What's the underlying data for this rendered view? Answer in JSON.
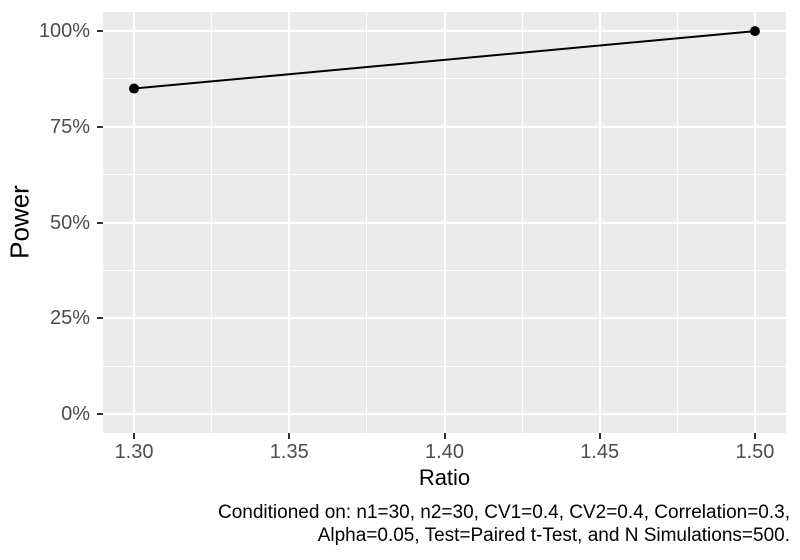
{
  "chart_data": {
    "type": "line",
    "title": "",
    "xlabel": "Ratio",
    "ylabel": "Power",
    "x": [
      1.3,
      1.5
    ],
    "series": [
      {
        "name": "Power",
        "values": [
          85,
          100
        ]
      }
    ],
    "y_unit": "%",
    "xlim": [
      1.29,
      1.51
    ],
    "ylim": [
      -5,
      105
    ],
    "x_ticks": [
      1.3,
      1.35,
      1.4,
      1.45,
      1.5
    ],
    "x_tick_labels": [
      "1.30",
      "1.35",
      "1.40",
      "1.45",
      "1.50"
    ],
    "y_ticks": [
      0,
      25,
      50,
      75,
      100
    ],
    "y_tick_labels": [
      "0%",
      "25%",
      "50%",
      "75%",
      "100%"
    ],
    "grid": "major-and-minor",
    "legend": "none",
    "caption": {
      "line1": "Conditioned on: n1=30, n2=30, CV1=0.4, CV2=0.4, Correlation=0.3,",
      "line2": "Alpha=0.05, Test=Paired t-Test, and N Simulations=500."
    },
    "colors": {
      "panel_bg": "#EBEBEB",
      "grid_color": "#FFFFFF",
      "tick_color": "#333333",
      "tick_label_color": "#4D4D4D",
      "line_color": "#000000",
      "title_color": "#000000",
      "caption_color": "#000000"
    }
  }
}
